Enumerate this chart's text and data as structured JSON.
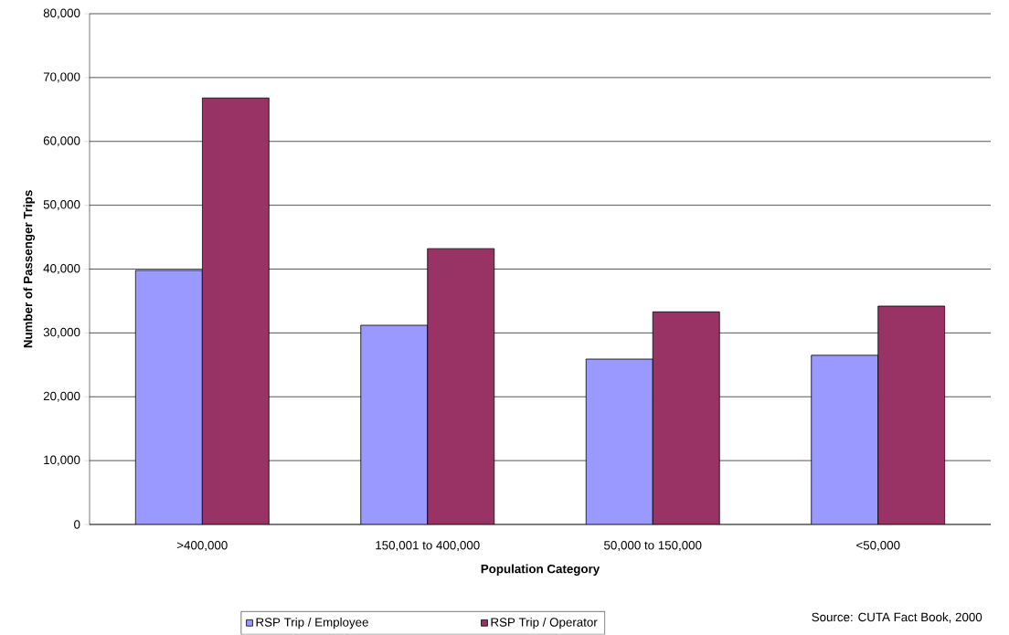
{
  "chart_data": {
    "type": "bar",
    "xlabel": "Population Category",
    "ylabel": "Number of Passenger Trips",
    "categories": [
      ">400,000",
      "150,001 to 400,000",
      "50,000 to 150,000",
      "<50,000"
    ],
    "series": [
      {
        "name": "RSP Trip / Employee",
        "color": "#9999ff",
        "values": [
          39800,
          31200,
          25900,
          26500
        ]
      },
      {
        "name": "RSP Trip / Operator",
        "color": "#993366",
        "values": [
          66800,
          43200,
          33300,
          34200
        ]
      }
    ],
    "ylim": [
      0,
      80000
    ],
    "yticks": [
      {
        "value": 0,
        "label": "0"
      },
      {
        "value": 10000,
        "label": "10,000"
      },
      {
        "value": 20000,
        "label": "20,000"
      },
      {
        "value": 30000,
        "label": "30,000"
      },
      {
        "value": 40000,
        "label": "40,000"
      },
      {
        "value": 50000,
        "label": "50,000"
      },
      {
        "value": 60000,
        "label": "60,000"
      },
      {
        "value": 70000,
        "label": "70,000"
      },
      {
        "value": 80000,
        "label": "80,000"
      }
    ],
    "grid": "y",
    "legend": "bottom",
    "annotations": [
      "Source: CUTA Fact Book, 2000"
    ]
  }
}
